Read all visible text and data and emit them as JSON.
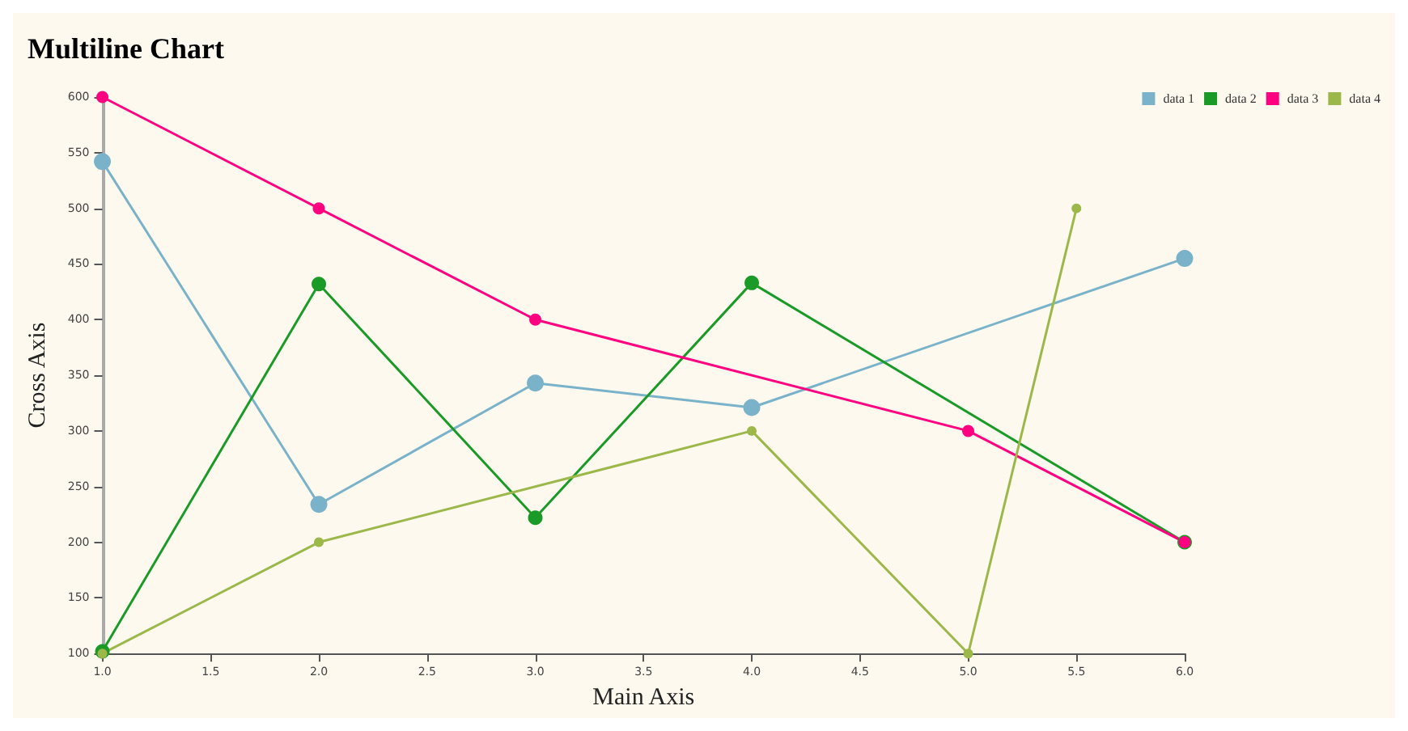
{
  "chart_data": {
    "type": "line",
    "title": "Multiline Chart",
    "xlabel": "Main Axis",
    "ylabel": "Cross Axis",
    "series": [
      {
        "name": "data 1",
        "color": "#7ab3c9",
        "x": [
          1,
          2,
          3,
          4,
          6
        ],
        "values": [
          542,
          234,
          343,
          321,
          455
        ]
      },
      {
        "name": "data 2",
        "color": "#1a9a27",
        "x": [
          1,
          2,
          3,
          4,
          6
        ],
        "values": [
          102,
          432,
          222,
          433,
          200
        ]
      },
      {
        "name": "data 3",
        "color": "#ff0080",
        "x": [
          1,
          2,
          3,
          5,
          6
        ],
        "values": [
          600,
          500,
          400,
          300,
          200
        ]
      },
      {
        "name": "data 4",
        "color": "#9cb84a",
        "x": [
          1,
          2,
          4,
          5,
          5.5
        ],
        "values": [
          100,
          200,
          300,
          100,
          500
        ]
      }
    ],
    "xlim": [
      1,
      6
    ],
    "xticks": [
      {
        "value": 1,
        "label": "1.0"
      },
      1.5,
      {
        "value": 2,
        "label": "2.0"
      },
      2.5,
      {
        "value": 3,
        "label": "3.0"
      },
      3.5,
      {
        "value": 4,
        "label": "4.0"
      },
      4.5,
      {
        "value": 5,
        "label": "5.0"
      },
      5.5,
      {
        "value": 6,
        "label": "6.0"
      }
    ],
    "ylim": [
      100,
      600
    ],
    "yticks": [
      100,
      150,
      200,
      250,
      300,
      350,
      400,
      450,
      500,
      550,
      600
    ],
    "grid": false,
    "legend": "top right",
    "marker": "circle",
    "line_style": "solid"
  }
}
